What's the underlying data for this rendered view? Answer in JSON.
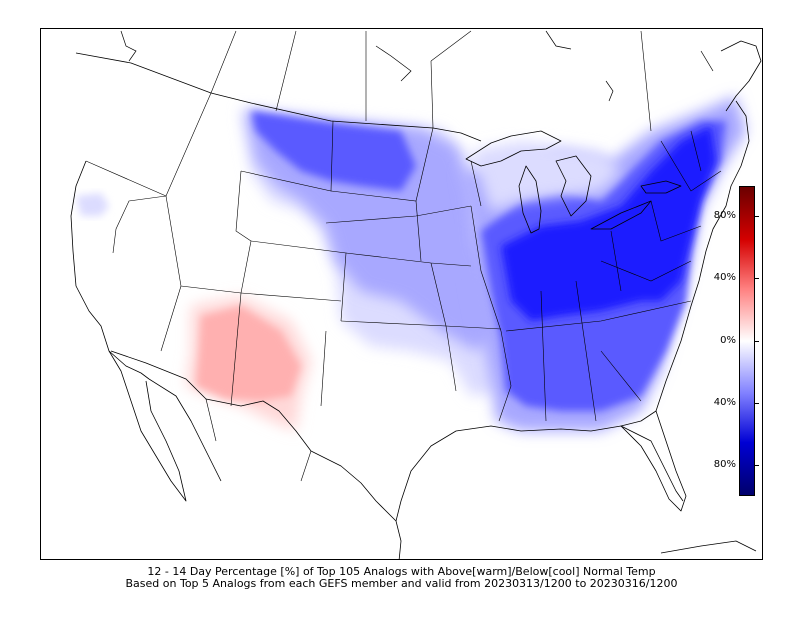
{
  "caption": {
    "line1": "12 - 14 Day Percentage [%] of Top 105 Analogs with Above[warm]/Below[cool] Normal Temp",
    "line2": "Based on Top 5 Analogs from each GEFS member and valid from 20230313/1200 to 20230316/1200"
  },
  "colorbar": {
    "labels": [
      "80%",
      "40%",
      "0%",
      "40%",
      "80%"
    ],
    "colors": [
      "#6b0000",
      "#d40000",
      "#ff8080",
      "#ffffff",
      "#8080ff",
      "#0000d4",
      "#00006b"
    ]
  },
  "anomaly_colors": {
    "cool_strong": "#1a1aff",
    "cool_medium": "#5a5aff",
    "cool_light": "#a8a8ff",
    "cool_faint": "#dcdcff",
    "warm_light": "#ffb0b0",
    "warm_faint": "#ffd8d8"
  }
}
